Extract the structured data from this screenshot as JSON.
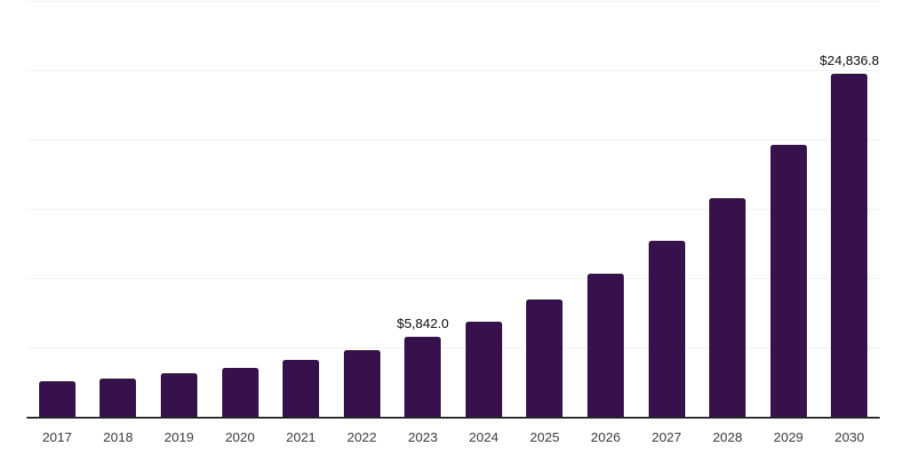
{
  "chart_data": {
    "type": "bar",
    "title": "",
    "xlabel": "",
    "ylabel": "",
    "categories": [
      "2017",
      "2018",
      "2019",
      "2020",
      "2021",
      "2022",
      "2023",
      "2024",
      "2025",
      "2026",
      "2027",
      "2028",
      "2029",
      "2030"
    ],
    "values": [
      2660,
      2820,
      3190,
      3610,
      4170,
      4850,
      5842.0,
      6920,
      8530,
      10400,
      12760,
      15830,
      19680,
      24836.8
    ],
    "data_labels": [
      "",
      "",
      "",
      "",
      "",
      "",
      "$5,842.0",
      "",
      "",
      "",
      "",
      "",
      "",
      "$24,836.8"
    ],
    "ylim": [
      0,
      30000
    ],
    "gridline_step": 5000,
    "grid": true,
    "legend": "none",
    "y_axis_labels_visible": false,
    "colors": {
      "bar": "#36114B",
      "gridline": "#f0f0f0",
      "axis": "#262626",
      "tick_label": "#404040",
      "value_label": "#111111",
      "background": "#ffffff"
    }
  }
}
